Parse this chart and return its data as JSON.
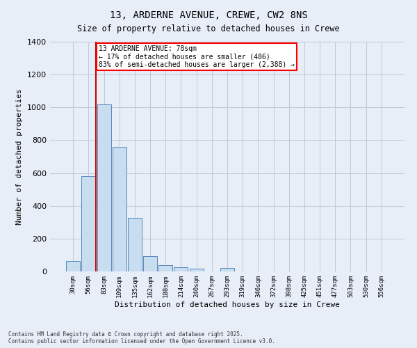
{
  "title_line1": "13, ARDERNE AVENUE, CREWE, CW2 8NS",
  "title_line2": "Size of property relative to detached houses in Crewe",
  "xlabel": "Distribution of detached houses by size in Crewe",
  "ylabel": "Number of detached properties",
  "annotation_line1": "13 ARDERNE AVENUE: 78sqm",
  "annotation_line2": "← 17% of detached houses are smaller (486)",
  "annotation_line3": "83% of semi-detached houses are larger (2,388) →",
  "bar_labels": [
    "30sqm",
    "56sqm",
    "83sqm",
    "109sqm",
    "135sqm",
    "162sqm",
    "188sqm",
    "214sqm",
    "240sqm",
    "267sqm",
    "293sqm",
    "319sqm",
    "346sqm",
    "372sqm",
    "398sqm",
    "425sqm",
    "451sqm",
    "477sqm",
    "503sqm",
    "530sqm",
    "556sqm"
  ],
  "bar_values": [
    65,
    580,
    1020,
    760,
    325,
    95,
    40,
    25,
    15,
    0,
    20,
    0,
    0,
    0,
    0,
    0,
    0,
    0,
    0,
    0,
    0
  ],
  "bar_color": "#c8ddf0",
  "bar_edge_color": "#5588bb",
  "vline_x": 1.5,
  "vertical_line_color": "#cc0000",
  "background_color": "#e8eef8",
  "grid_color": "#c0c8d8",
  "ylim": [
    0,
    1400
  ],
  "yticks": [
    0,
    200,
    400,
    600,
    800,
    1000,
    1200,
    1400
  ],
  "footer_line1": "Contains HM Land Registry data © Crown copyright and database right 2025.",
  "footer_line2": "Contains public sector information licensed under the Open Government Licence v3.0."
}
